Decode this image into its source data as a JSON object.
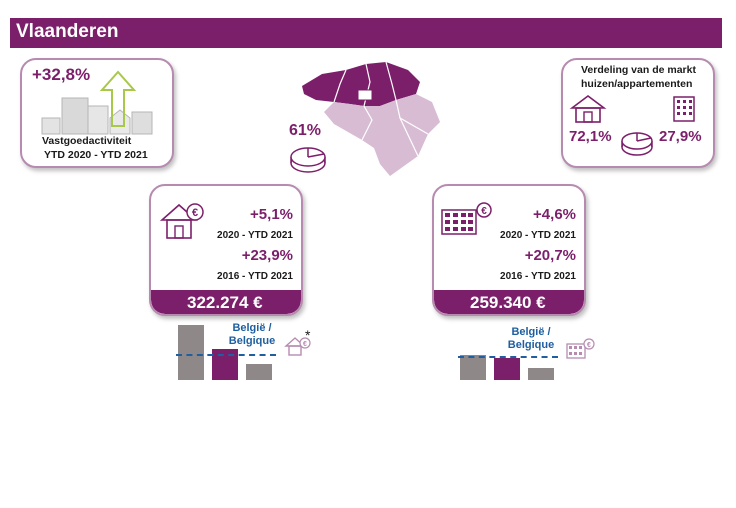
{
  "header": {
    "title": "Vlaanderen"
  },
  "activity": {
    "change": "+32,8%",
    "label_line1": "Vastgoedactiviteit",
    "label_line2": "YTD 2020 - YTD 2021"
  },
  "map": {
    "share": "61%"
  },
  "market_split": {
    "title_line1": "Verdeling van de markt",
    "title_line2": "huizen/appartementen",
    "houses_share": "72,1%",
    "apartments_share": "27,9%"
  },
  "houses": {
    "change_short": "+5,1%",
    "period_short": "2020 - YTD 2021",
    "change_long": "+23,9%",
    "period_long": "2016 - YTD 2021",
    "price": "322.274 €",
    "reference_label_line1": "België /",
    "reference_label_line2": "Belgique",
    "footnote_mark": "*",
    "bar_chart": {
      "bars": [
        {
          "value": 0.55
        },
        {
          "value": 0.31
        },
        {
          "value": 0.16
        }
      ],
      "reference": 0.26
    }
  },
  "apartments": {
    "change_short": "+4,6%",
    "period_short": "2020 - YTD 2021",
    "change_long": "+20,7%",
    "period_long": "2016 - YTD 2021",
    "price": "259.340 €",
    "reference_label_line1": "België /",
    "reference_label_line2": "Belgique",
    "bar_chart": {
      "bars": [
        {
          "value": 0.25
        },
        {
          "value": 0.22
        },
        {
          "value": 0.12
        }
      ],
      "reference": 0.24
    }
  },
  "colors": {
    "brand_purple": "#7c1f6b",
    "light_purple": "#b78bb0",
    "grey": "#8f8888",
    "reference_blue": "#1f5fa0"
  }
}
